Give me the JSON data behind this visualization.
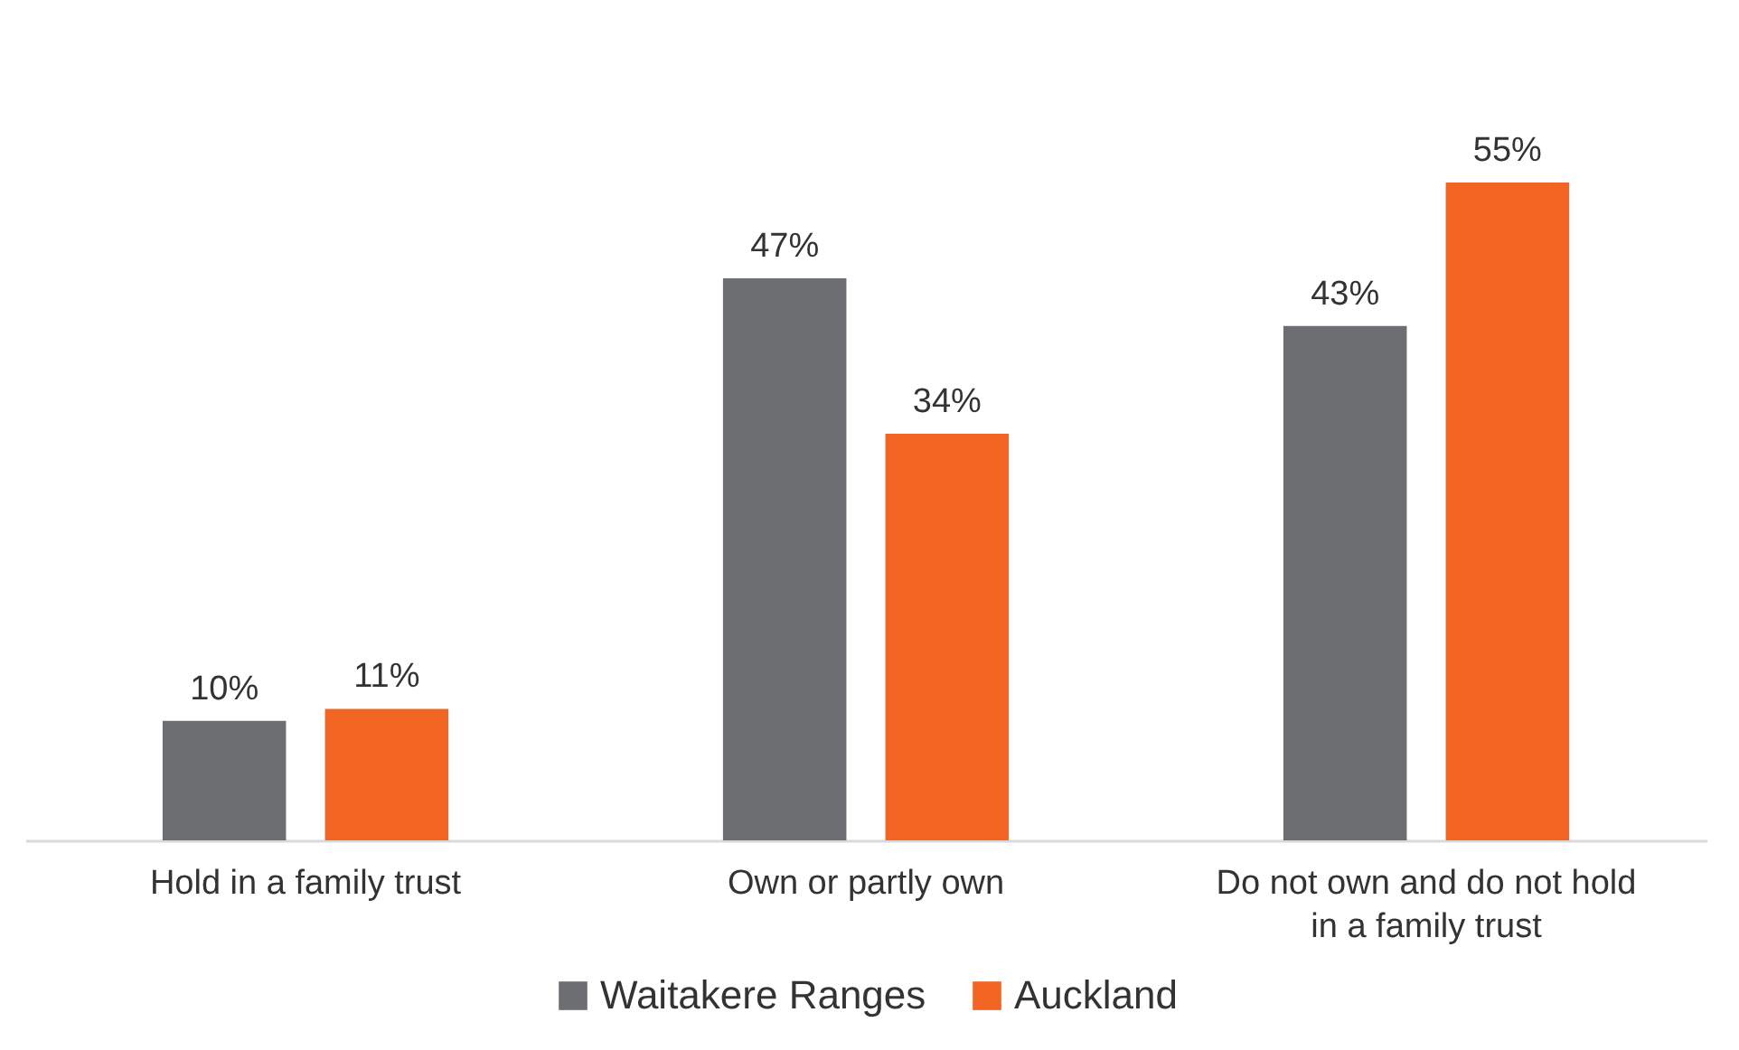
{
  "chart_data": {
    "type": "bar",
    "categories": [
      "Hold in a family trust",
      "Own or partly own",
      "Do not own and do not hold in a family trust"
    ],
    "series": [
      {
        "name": "Waitakere Ranges",
        "color": "#6d6e71",
        "values": [
          10,
          47,
          43
        ],
        "value_labels": [
          "10%",
          "47%",
          "43%"
        ]
      },
      {
        "name": "Auckland",
        "color": "#f26522",
        "values": [
          11,
          34,
          55
        ],
        "value_labels": [
          "11%",
          "34%",
          "55%"
        ]
      }
    ],
    "legend": "bottom"
  }
}
